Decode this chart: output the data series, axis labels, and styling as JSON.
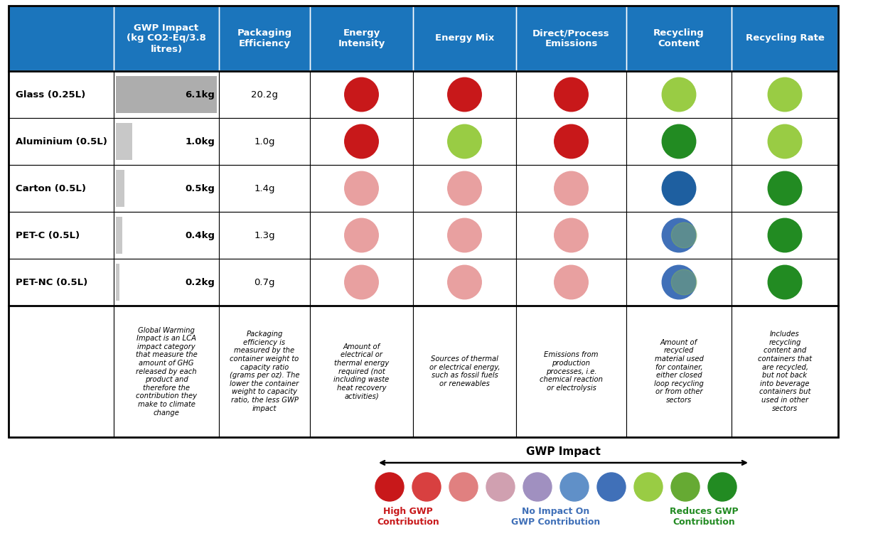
{
  "header_bg": "#1B75BC",
  "header_text_color": "#FFFFFF",
  "header_labels": [
    "",
    "GWP Impact\n(kg CO2-Eq/3.8\nlitres)",
    "Packaging\nEfficiency",
    "Energy\nIntensity",
    "Energy Mix",
    "Direct/Process\nEmissions",
    "Recycling\nContent",
    "Recycling Rate"
  ],
  "row_labels": [
    "Glass (0.25L)",
    "Aluminium (0.5L)",
    "Carton (0.5L)",
    "PET-C (0.5L)",
    "PET-NC (0.5L)"
  ],
  "gwp_values": [
    "6.1kg",
    "1.0kg",
    "0.5kg",
    "0.4kg",
    "0.2kg"
  ],
  "gwp_numeric": [
    6.1,
    1.0,
    0.5,
    0.4,
    0.2
  ],
  "packaging_values": [
    "20.2g",
    "1.0g",
    "1.4g",
    "1.3g",
    "0.7g"
  ],
  "circles": [
    [
      "red_dark",
      "red_dark",
      "red_dark",
      "green_light",
      "green_light"
    ],
    [
      "red_dark",
      "green_light",
      "red_dark",
      "green_dark",
      "green_light"
    ],
    [
      "pink",
      "pink",
      "pink",
      "blue_solid",
      "green_dark"
    ],
    [
      "pink",
      "pink",
      "pink",
      "blue_grad",
      "green_dark"
    ],
    [
      "pink",
      "pink",
      "pink",
      "blue_grad",
      "green_dark"
    ]
  ],
  "color_map": {
    "red_dark": "#C8181A",
    "pink": "#E8A0A0",
    "blue_solid": "#1E5FA0",
    "blue_grad": "#6090C8",
    "green_light": "#99CC44",
    "green_dark": "#228B22"
  },
  "descriptions": [
    "Global Warming\nImpact is an LCA\nimpact category\nthat measure the\namount of GHG\nreleased by each\nproduct and\ntherefore the\ncontribution they\nmake to climate\nchange",
    "Packaging\nefficiency is\nmeasured by the\ncontainer weight to\ncapacity ratio\n(grams per oz). The\nlower the container\nweight to capacity\nratio, the less GWP\nimpact",
    "Amount of\nelectrical or\nthermal energy\nrequired (not\nincluding waste\nheat recovery\nactivities)",
    "Sources of thermal\nor electrical energy,\nsuch as fossil fuels\nor renewables",
    "Emissions from\nproduction\nprocesses, i.e.\nchemical reaction\nor electrolysis",
    "Amount of\nrecycled\nmaterial used\nfor container,\neither closed\nloop recycling\nor from other\nsectors",
    "Includes\nrecycling\ncontent and\ncontainers that\nare recycled,\nbut not back\ninto beverage\ncontainers but\nused in other\nsectors"
  ],
  "legend_label_high": "High GWP\nContribution",
  "legend_label_none": "No Impact On\nGWP Contribution",
  "legend_label_reduces": "Reduces GWP\nContribution",
  "legend_arrow_label": "GWP Impact",
  "legend_colors": [
    "#C8181A",
    "#D84040",
    "#E08080",
    "#D0A0B0",
    "#A090C0",
    "#6090C8",
    "#4070B8",
    "#99CC44",
    "#66AA33",
    "#228B22"
  ]
}
